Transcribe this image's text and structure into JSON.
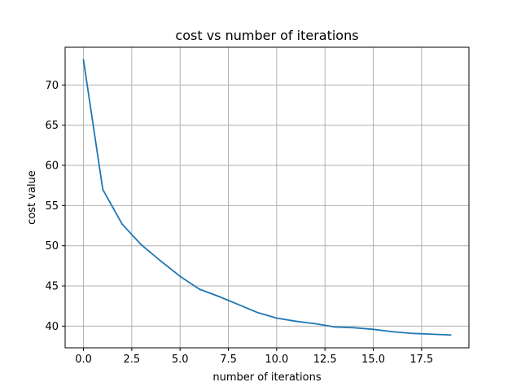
{
  "chart_data": {
    "type": "line",
    "title": "cost vs number of iterations",
    "xlabel": "number of iterations",
    "ylabel": "cost value",
    "xlim": [
      -0.95,
      19.95
    ],
    "ylim": [
      37.3,
      74.7
    ],
    "xticks": [
      0,
      2.5,
      5,
      7.5,
      10,
      12.5,
      15,
      17.5
    ],
    "xtick_labels": [
      "0.0",
      "2.5",
      "5.0",
      "7.5",
      "10.0",
      "12.5",
      "15.0",
      "17.5"
    ],
    "yticks": [
      40,
      45,
      50,
      55,
      60,
      65,
      70
    ],
    "ytick_labels": [
      "40",
      "45",
      "50",
      "55",
      "60",
      "65",
      "70"
    ],
    "grid": true,
    "legend": "none",
    "series": [
      {
        "color": "#1f77b4",
        "x": [
          0,
          1,
          2,
          3,
          4,
          5,
          6,
          7,
          8,
          9,
          10,
          11,
          12,
          13,
          14,
          15,
          16,
          17,
          18,
          19
        ],
        "values": [
          73.1,
          57.0,
          52.7,
          50.1,
          48.1,
          46.2,
          44.6,
          43.7,
          42.7,
          41.7,
          41.0,
          40.6,
          40.3,
          39.9,
          39.8,
          39.6,
          39.3,
          39.1,
          39.0,
          38.9
        ]
      }
    ]
  }
}
